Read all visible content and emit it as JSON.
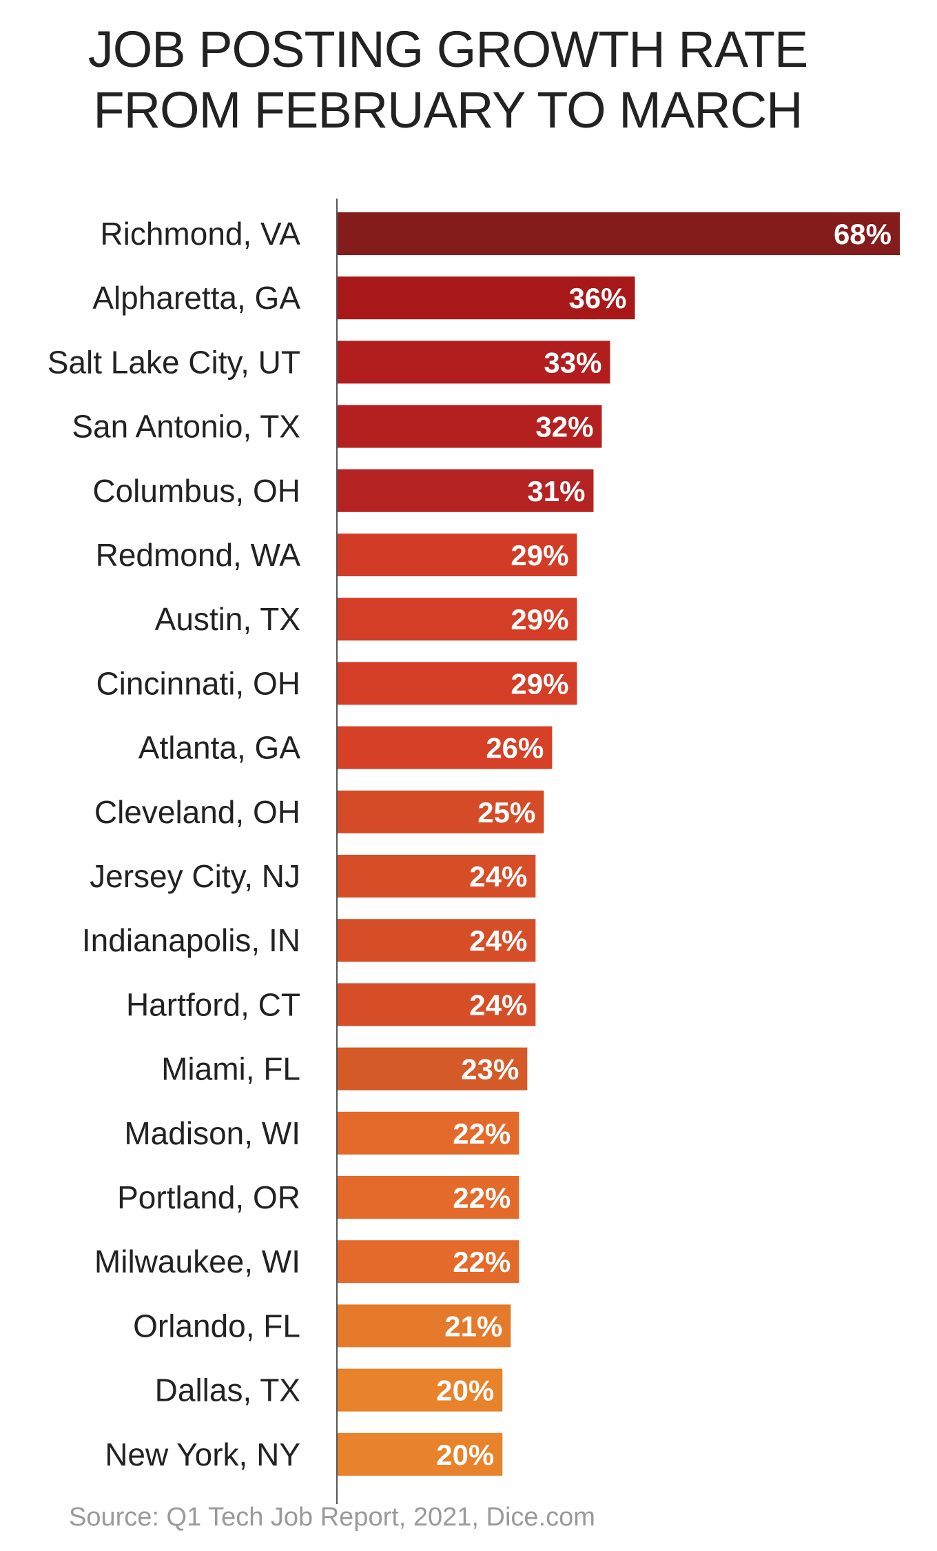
{
  "chart_data": {
    "type": "bar",
    "orientation": "horizontal",
    "title_lines": [
      "JOB POSTING GROWTH RATE",
      "FROM FEBRUARY TO MARCH"
    ],
    "categories": [
      "Richmond, VA",
      "Alpharetta, GA",
      "Salt Lake City, UT",
      "San Antonio, TX",
      "Columbus, OH",
      "Redmond, WA",
      "Austin, TX",
      "Cincinnati, OH",
      "Atlanta, GA",
      "Cleveland, OH",
      "Jersey City, NJ",
      "Indianapolis, IN",
      "Hartford, CT",
      "Miami, FL",
      "Madison, WI",
      "Portland, OR",
      "Milwaukee, WI",
      "Orlando, FL",
      "Dallas, TX",
      "New York, NY"
    ],
    "values": [
      68,
      36,
      33,
      32,
      31,
      29,
      29,
      29,
      26,
      25,
      24,
      24,
      24,
      23,
      22,
      22,
      22,
      21,
      20,
      20
    ],
    "value_labels": [
      "68%",
      "36%",
      "33%",
      "32%",
      "31%",
      "29%",
      "29%",
      "29%",
      "26%",
      "25%",
      "24%",
      "24%",
      "24%",
      "23%",
      "22%",
      "22%",
      "22%",
      "21%",
      "20%",
      "20%"
    ],
    "colors": [
      "#841c1c",
      "#a81818",
      "#b21e1e",
      "#b42020",
      "#b52222",
      "#d23c26",
      "#d43d26",
      "#d43d26",
      "#d54026",
      "#d54b28",
      "#d64e28",
      "#d64e28",
      "#d64e28",
      "#d45a28",
      "#e36a2a",
      "#e36a2a",
      "#e36a2a",
      "#e47a2a",
      "#e8822b",
      "#e8822b"
    ],
    "xlim": [
      0,
      68
    ],
    "grid": false,
    "legend": "none",
    "axis_color": "#555555"
  },
  "source": "Source: Q1 Tech Job Report, 2021, Dice.com"
}
